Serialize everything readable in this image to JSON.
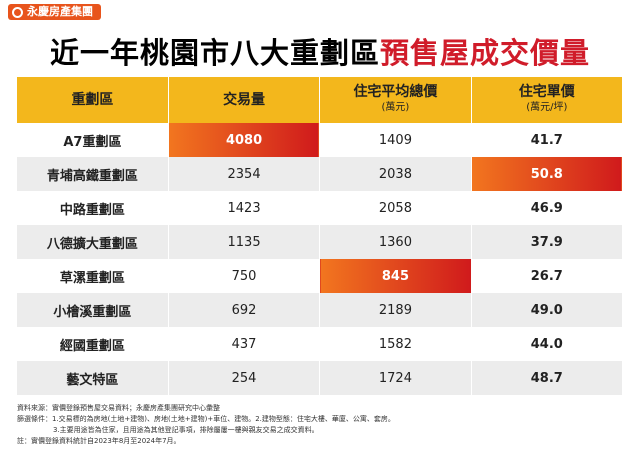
{
  "logo": "永慶房產集團",
  "title": {
    "main": "近一年桃園市八大重劃區",
    "highlight": "預售屋成交價量"
  },
  "table": {
    "headers": [
      {
        "label": "重劃區"
      },
      {
        "label": "交易量"
      },
      {
        "label": "住宅平均總價",
        "sub": "(萬元)"
      },
      {
        "label": "住宅單價",
        "sub": "(萬元/坪)"
      }
    ],
    "rows": [
      [
        "A7重劃區",
        "4080",
        "1409",
        "41.7"
      ],
      [
        "青埔高鐵重劃區",
        "2354",
        "2038",
        "50.8"
      ],
      [
        "中路重劃區",
        "1423",
        "2058",
        "46.9"
      ],
      [
        "八德擴大重劃區",
        "1135",
        "1360",
        "37.9"
      ],
      [
        "草漯重劃區",
        "750",
        "845",
        "26.7"
      ],
      [
        "小檜溪重劃區",
        "692",
        "2189",
        "49.0"
      ],
      [
        "經國重劃區",
        "437",
        "1582",
        "44.0"
      ],
      [
        "藝文特區",
        "254",
        "1724",
        "48.7"
      ]
    ],
    "highlight": [
      [
        0,
        1
      ],
      [
        1,
        3
      ],
      [
        4,
        2
      ]
    ],
    "bold_columns": [
      0,
      3
    ]
  },
  "notes": [
    "資料來源：實價登錄預售屋交易資料；永慶房產集團研究中心彙整",
    "篩選條件：1.交易標的為房地(土地+建物)、房地(土地+建物)+車位、建物。2.建物型態：住宅大樓、華廈、公寓、套房。",
    "3.主要用途皆為住家，且用途為其他登記事項，排除屬屢一樓與親友交易之成交資料。",
    "註：實價登錄資料統計自2023年8月至2024年7月。"
  ]
}
